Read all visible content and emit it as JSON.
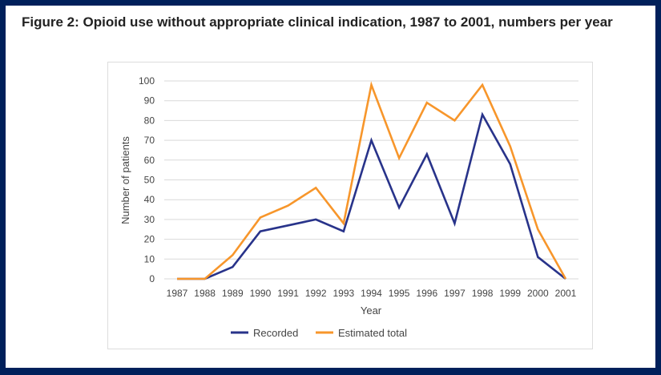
{
  "title": "Figure 2: Opioid use without appropriate clinical indication, 1987 to 2001, numbers per year",
  "chart_data": {
    "type": "line",
    "title": "",
    "xlabel": "Year",
    "ylabel": "Number of patients",
    "ylim": [
      0,
      100
    ],
    "yticks": [
      "0",
      "10",
      "20",
      "30",
      "40",
      "50",
      "60",
      "70",
      "80",
      "90",
      "100"
    ],
    "grid": true,
    "legend": "bottom",
    "categories": [
      "1987",
      "1988",
      "1989",
      "1990",
      "1991",
      "1992",
      "1993",
      "1994",
      "1995",
      "1996",
      "1997",
      "1998",
      "1999",
      "2000",
      "2001"
    ],
    "series": [
      {
        "name": "Recorded",
        "color": "#28338a",
        "values": [
          0,
          0,
          6,
          24,
          27,
          30,
          24,
          70,
          36,
          63,
          28,
          83,
          58,
          11,
          0
        ]
      },
      {
        "name": "Estimated total",
        "color": "#f7962b",
        "values": [
          0,
          0,
          12,
          31,
          37,
          46,
          28,
          98,
          61,
          89,
          80,
          98,
          67,
          25,
          0
        ]
      }
    ]
  },
  "colors": {
    "frame": "#00205b"
  }
}
